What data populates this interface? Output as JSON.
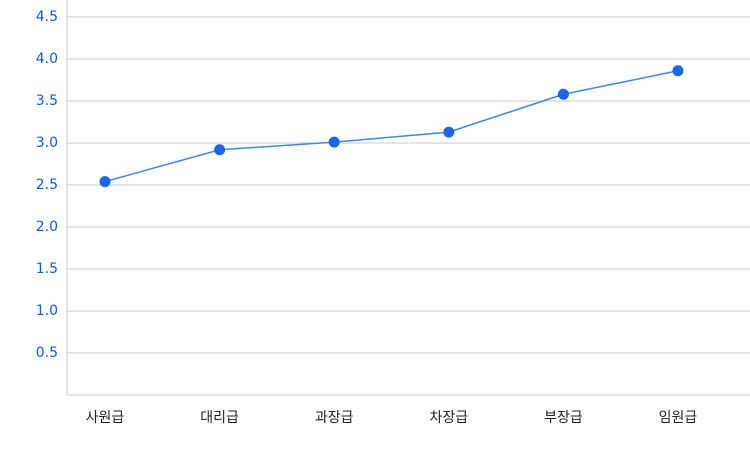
{
  "chart_data": {
    "type": "line",
    "categories": [
      "사원급",
      "대리급",
      "과장급",
      "차장급",
      "부장급",
      "임원급"
    ],
    "series": [
      {
        "name": null,
        "color": "#1a66f0",
        "values": [
          2.54,
          2.92,
          3.01,
          3.13,
          3.58,
          3.86
        ]
      }
    ],
    "ylim": [
      0,
      4.5
    ],
    "yticks": [
      0.5,
      1.0,
      1.5,
      2.0,
      2.5,
      3.0,
      3.5,
      4.0,
      4.5
    ],
    "grid": true
  }
}
